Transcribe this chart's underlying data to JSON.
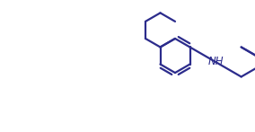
{
  "bg_color": "#ffffff",
  "line_color": "#2c2c8c",
  "line_width": 1.6,
  "nh_label": "NH",
  "nh_fontsize": 8.5,
  "fig_width": 2.84,
  "fig_height": 1.47,
  "dpi": 100
}
